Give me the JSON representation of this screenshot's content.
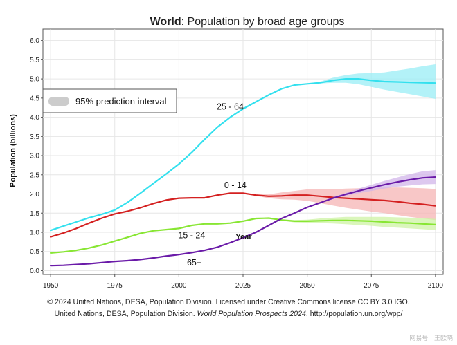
{
  "chart_data": {
    "type": "line",
    "title_bold": "World",
    "title_rest": ": Population by broad age groups",
    "xlabel": "Year",
    "ylabel": "Population (billions)",
    "xlim": [
      1947,
      2103
    ],
    "ylim": [
      -0.1,
      6.3
    ],
    "xticks": [
      1950,
      1975,
      2000,
      2025,
      2050,
      2075,
      2100
    ],
    "yticks": [
      "0.0",
      "0.5",
      "1.0",
      "1.5",
      "2.0",
      "2.5",
      "3.0",
      "3.5",
      "4.0",
      "4.5",
      "5.0",
      "5.5",
      "6.0"
    ],
    "legend": {
      "label": "95% prediction interval",
      "position": "top-left",
      "color": "#cccccc"
    },
    "series": [
      {
        "name": "25 - 64",
        "color": "#33e0ee",
        "band_color": "#99eef5",
        "label_at": [
          2020,
          4.2
        ],
        "x": [
          1950,
          1955,
          1960,
          1965,
          1970,
          1975,
          1980,
          1985,
          1990,
          1995,
          2000,
          2005,
          2010,
          2015,
          2020,
          2025,
          2030,
          2035,
          2040,
          2045,
          2050,
          2055,
          2060,
          2065,
          2070,
          2075,
          2080,
          2085,
          2090,
          2095,
          2100
        ],
        "values": [
          1.05,
          1.16,
          1.27,
          1.38,
          1.47,
          1.58,
          1.78,
          2.02,
          2.27,
          2.52,
          2.78,
          3.08,
          3.42,
          3.74,
          4.0,
          4.22,
          4.4,
          4.58,
          4.74,
          4.84,
          4.87,
          4.9,
          4.96,
          5.0,
          5.0,
          4.96,
          4.93,
          4.92,
          4.91,
          4.9,
          4.89
        ],
        "band_lower": [
          1.05,
          1.16,
          1.27,
          1.38,
          1.47,
          1.58,
          1.78,
          2.02,
          2.27,
          2.52,
          2.78,
          3.08,
          3.42,
          3.74,
          4.0,
          4.22,
          4.4,
          4.58,
          4.74,
          4.84,
          4.86,
          4.88,
          4.9,
          4.9,
          4.86,
          4.79,
          4.72,
          4.66,
          4.6,
          4.54,
          4.48
        ],
        "band_upper": [
          1.05,
          1.16,
          1.27,
          1.38,
          1.47,
          1.58,
          1.78,
          2.02,
          2.27,
          2.52,
          2.78,
          3.08,
          3.42,
          3.74,
          4.0,
          4.22,
          4.4,
          4.58,
          4.74,
          4.84,
          4.88,
          4.93,
          5.03,
          5.1,
          5.14,
          5.15,
          5.17,
          5.22,
          5.27,
          5.33,
          5.38
        ]
      },
      {
        "name": "0 - 14",
        "color": "#d42020",
        "band_color": "#f5b4b4",
        "label_at": [
          2022,
          2.15
        ],
        "x": [
          1950,
          1955,
          1960,
          1965,
          1970,
          1975,
          1980,
          1985,
          1990,
          1995,
          2000,
          2005,
          2010,
          2015,
          2020,
          2025,
          2030,
          2035,
          2040,
          2045,
          2050,
          2055,
          2060,
          2065,
          2070,
          2075,
          2080,
          2085,
          2090,
          2095,
          2100
        ],
        "values": [
          0.88,
          0.98,
          1.1,
          1.24,
          1.37,
          1.48,
          1.55,
          1.64,
          1.75,
          1.84,
          1.89,
          1.9,
          1.9,
          1.97,
          2.02,
          2.02,
          1.97,
          1.94,
          1.95,
          1.97,
          1.97,
          1.94,
          1.91,
          1.89,
          1.87,
          1.85,
          1.83,
          1.8,
          1.76,
          1.73,
          1.69
        ],
        "band_lower": [
          0.88,
          0.98,
          1.1,
          1.24,
          1.37,
          1.48,
          1.55,
          1.64,
          1.75,
          1.84,
          1.89,
          1.9,
          1.9,
          1.97,
          2.02,
          2.02,
          1.95,
          1.89,
          1.86,
          1.85,
          1.82,
          1.76,
          1.7,
          1.64,
          1.59,
          1.54,
          1.5,
          1.45,
          1.4,
          1.36,
          1.32
        ],
        "band_upper": [
          0.88,
          0.98,
          1.1,
          1.24,
          1.37,
          1.48,
          1.55,
          1.64,
          1.75,
          1.84,
          1.89,
          1.9,
          1.9,
          1.97,
          2.02,
          2.02,
          1.99,
          1.99,
          2.04,
          2.08,
          2.12,
          2.12,
          2.12,
          2.14,
          2.15,
          2.16,
          2.17,
          2.17,
          2.16,
          2.15,
          2.13
        ]
      },
      {
        "name": "15 - 24",
        "color": "#88e633",
        "band_color": "#cdf3a4",
        "label_at": [
          2005,
          0.85
        ],
        "x": [
          1950,
          1955,
          1960,
          1965,
          1970,
          1975,
          1980,
          1985,
          1990,
          1995,
          2000,
          2005,
          2010,
          2015,
          2020,
          2025,
          2030,
          2035,
          2040,
          2045,
          2050,
          2055,
          2060,
          2065,
          2070,
          2075,
          2080,
          2085,
          2090,
          2095,
          2100
        ],
        "values": [
          0.46,
          0.49,
          0.53,
          0.59,
          0.67,
          0.77,
          0.87,
          0.97,
          1.04,
          1.07,
          1.1,
          1.18,
          1.22,
          1.22,
          1.24,
          1.29,
          1.36,
          1.37,
          1.32,
          1.29,
          1.29,
          1.3,
          1.31,
          1.31,
          1.3,
          1.29,
          1.27,
          1.25,
          1.24,
          1.22,
          1.2
        ],
        "band_lower": [
          0.46,
          0.49,
          0.53,
          0.59,
          0.67,
          0.77,
          0.87,
          0.97,
          1.04,
          1.07,
          1.1,
          1.18,
          1.22,
          1.22,
          1.24,
          1.29,
          1.36,
          1.36,
          1.3,
          1.26,
          1.25,
          1.24,
          1.23,
          1.21,
          1.19,
          1.17,
          1.14,
          1.12,
          1.1,
          1.08,
          1.06
        ],
        "band_upper": [
          0.46,
          0.49,
          0.53,
          0.59,
          0.67,
          0.77,
          0.87,
          0.97,
          1.04,
          1.07,
          1.1,
          1.18,
          1.22,
          1.22,
          1.24,
          1.29,
          1.36,
          1.38,
          1.34,
          1.32,
          1.33,
          1.36,
          1.38,
          1.4,
          1.4,
          1.4,
          1.4,
          1.39,
          1.38,
          1.37,
          1.35
        ]
      },
      {
        "name": "65+",
        "color": "#6a1aa8",
        "band_color": "#d1b6ea",
        "label_at": [
          2006,
          0.13
        ],
        "x": [
          1950,
          1955,
          1960,
          1965,
          1970,
          1975,
          1980,
          1985,
          1990,
          1995,
          2000,
          2005,
          2010,
          2015,
          2020,
          2025,
          2030,
          2035,
          2040,
          2045,
          2050,
          2055,
          2060,
          2065,
          2070,
          2075,
          2080,
          2085,
          2090,
          2095,
          2100
        ],
        "values": [
          0.13,
          0.14,
          0.16,
          0.18,
          0.21,
          0.24,
          0.26,
          0.29,
          0.33,
          0.38,
          0.42,
          0.47,
          0.53,
          0.61,
          0.73,
          0.86,
          1.0,
          1.18,
          1.36,
          1.5,
          1.65,
          1.77,
          1.89,
          1.99,
          2.08,
          2.16,
          2.24,
          2.31,
          2.37,
          2.42,
          2.44
        ],
        "band_lower": [
          0.13,
          0.14,
          0.16,
          0.18,
          0.21,
          0.24,
          0.26,
          0.29,
          0.33,
          0.38,
          0.42,
          0.47,
          0.53,
          0.61,
          0.73,
          0.86,
          1.0,
          1.18,
          1.36,
          1.5,
          1.64,
          1.75,
          1.86,
          1.95,
          2.02,
          2.08,
          2.14,
          2.19,
          2.22,
          2.25,
          2.26
        ],
        "band_upper": [
          0.13,
          0.14,
          0.16,
          0.18,
          0.21,
          0.24,
          0.26,
          0.29,
          0.33,
          0.38,
          0.42,
          0.47,
          0.53,
          0.61,
          0.73,
          0.86,
          1.0,
          1.18,
          1.36,
          1.5,
          1.66,
          1.79,
          1.92,
          2.03,
          2.14,
          2.24,
          2.34,
          2.43,
          2.52,
          2.59,
          2.62
        ]
      }
    ]
  },
  "footer": {
    "line1": "© 2024 United Nations, DESA, Population Division. Licensed under Creative Commons license CC BY 3.0 IGO.",
    "line2_pre": "United Nations, DESA, Population Division. ",
    "line2_italic": "World Population Prospects 2024",
    "line2_post": ". http://population.un.org/wpp/"
  },
  "watermark": "网易号 | 王欧晓"
}
